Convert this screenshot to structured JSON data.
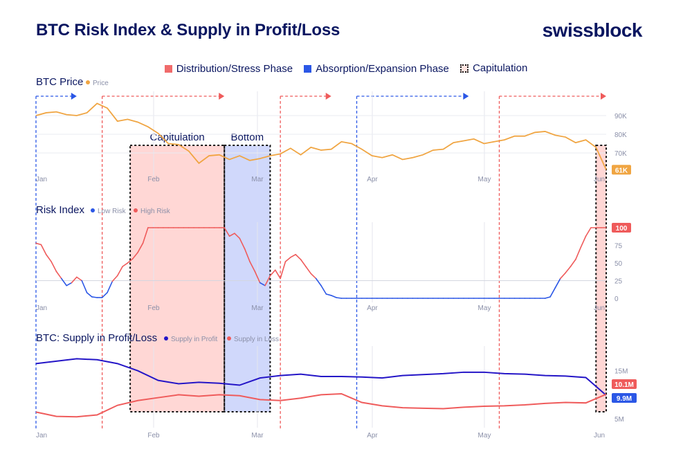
{
  "header": {
    "title": "BTC Risk Index & Supply in Profit/Loss",
    "brand": "swissblock"
  },
  "legend": [
    {
      "label": "Distribution/Stress Phase",
      "kind": "dist"
    },
    {
      "label": "Absorption/Expansion Phase",
      "kind": "abs"
    },
    {
      "label": "Capitulation",
      "kind": "cap"
    }
  ],
  "colors": {
    "price": "#f0a542",
    "low_risk": "#2b57e6",
    "high_risk": "#ef5b5b",
    "profit": "#2415c7",
    "loss": "#ef5b5b",
    "dist_fill": "#ffd3d0",
    "abs_fill": "#cdd6fb",
    "navy": "#0a1660"
  },
  "annotations": {
    "capitulation": "Capitulation",
    "bottom": "Bottom"
  },
  "chart_data": [
    {
      "type": "line",
      "title": "BTC Price",
      "legend_position": "top-left",
      "x_ticks": [
        "Jan",
        "Feb",
        "Mar",
        "Apr",
        "May",
        "Jun"
      ],
      "y_ticks": [
        "90K",
        "80K",
        "70K"
      ],
      "ylim": [
        60000,
        100000
      ],
      "series": [
        {
          "name": "Price",
          "last_label": "61K",
          "x": [
            0,
            4,
            8,
            12,
            16,
            20,
            24,
            28,
            32,
            36,
            40,
            44,
            48,
            52,
            56,
            60,
            64,
            68,
            72,
            76,
            80,
            84,
            88,
            92,
            96,
            100,
            104,
            108,
            112,
            116,
            120,
            124,
            128,
            132,
            136,
            140,
            144,
            148,
            152,
            156,
            160,
            164,
            168,
            172,
            176,
            180,
            184,
            188,
            192,
            196,
            200,
            204,
            208,
            212,
            216,
            220,
            224
          ],
          "values": [
            90000,
            91500,
            92000,
            90500,
            90000,
            91500,
            96500,
            94000,
            87000,
            88000,
            86500,
            84000,
            80500,
            75000,
            74500,
            71000,
            64500,
            68500,
            69000,
            66500,
            68500,
            66000,
            67000,
            68500,
            69500,
            72500,
            69000,
            73000,
            71500,
            72000,
            76000,
            75000,
            72000,
            68500,
            67500,
            69000,
            66500,
            67500,
            69000,
            71500,
            72000,
            75500,
            76500,
            77500,
            75000,
            76000,
            77000,
            79000,
            79000,
            81000,
            81500,
            79500,
            78500,
            75500,
            77000,
            73000,
            61000
          ]
        }
      ],
      "phases": [
        {
          "kind": "abs",
          "start": 0,
          "end": 16
        },
        {
          "kind": "dist",
          "start": 26,
          "end": 74
        },
        {
          "kind": "dist",
          "start": 96,
          "end": 116
        },
        {
          "kind": "abs",
          "start": 126,
          "end": 170
        },
        {
          "kind": "dist",
          "start": 182,
          "end": 224
        }
      ]
    },
    {
      "type": "line",
      "title": "Risk Index",
      "legend_position": "top-left",
      "x_ticks": [
        "Jan",
        "Feb",
        "Mar",
        "Apr",
        "May",
        "Jun"
      ],
      "y_ticks": [
        "100",
        "75",
        "50",
        "25",
        "0"
      ],
      "ylim": [
        0,
        100
      ],
      "last_value_label": "100",
      "series_names": {
        "low": "Low Risk",
        "high": "High Risk"
      },
      "x": [
        0,
        2,
        4,
        6,
        8,
        10,
        12,
        14,
        16,
        18,
        20,
        22,
        24,
        26,
        28,
        30,
        32,
        34,
        36,
        38,
        40,
        42,
        44,
        46,
        48,
        50,
        52,
        54,
        56,
        58,
        60,
        62,
        64,
        66,
        68,
        70,
        72,
        74,
        76,
        78,
        80,
        82,
        84,
        86,
        88,
        90,
        92,
        94,
        96,
        98,
        100,
        102,
        104,
        106,
        108,
        110,
        112,
        114,
        116,
        118,
        120,
        122,
        124,
        126,
        128,
        130,
        132,
        134,
        136,
        138,
        140,
        142,
        144,
        146,
        148,
        150,
        152,
        154,
        156,
        158,
        160,
        162,
        164,
        166,
        168,
        170,
        172,
        174,
        176,
        178,
        180,
        182,
        184,
        186,
        188,
        190,
        192,
        194,
        196,
        198,
        200,
        202,
        204,
        206,
        208,
        210,
        212,
        214,
        216,
        218,
        220,
        222,
        224
      ],
      "values": [
        78,
        76,
        62,
        52,
        38,
        28,
        18,
        22,
        30,
        25,
        8,
        2,
        1,
        1,
        8,
        24,
        32,
        45,
        50,
        56,
        65,
        78,
        100,
        100,
        100,
        100,
        100,
        100,
        100,
        100,
        100,
        100,
        100,
        100,
        100,
        100,
        100,
        100,
        88,
        92,
        85,
        70,
        52,
        38,
        22,
        18,
        32,
        40,
        28,
        52,
        58,
        62,
        55,
        45,
        35,
        28,
        18,
        6,
        4,
        1,
        0,
        0,
        0,
        0,
        0,
        0,
        0,
        0,
        0,
        0,
        0,
        0,
        0,
        0,
        0,
        0,
        0,
        0,
        0,
        0,
        0,
        0,
        0,
        0,
        0,
        0,
        0,
        0,
        0,
        0,
        0,
        0,
        0,
        0,
        0,
        0,
        0,
        0,
        0,
        0,
        0,
        2,
        15,
        28,
        36,
        45,
        55,
        72,
        88,
        100,
        100,
        100,
        100
      ],
      "split": 25
    },
    {
      "type": "line",
      "title": "BTC: Supply in Profit/Loss",
      "legend_position": "top-left",
      "x_ticks": [
        "Jan",
        "Feb",
        "Mar",
        "Apr",
        "May",
        "Jun"
      ],
      "y_ticks": [
        "15M",
        "5M"
      ],
      "ylim": [
        4000000,
        19000000
      ],
      "series": [
        {
          "name": "Supply in Profit",
          "last_label": "9.9M",
          "x": [
            0,
            8,
            16,
            24,
            32,
            40,
            48,
            56,
            64,
            72,
            80,
            88,
            96,
            104,
            112,
            120,
            128,
            136,
            144,
            152,
            160,
            168,
            176,
            184,
            192,
            200,
            208,
            216,
            224
          ],
          "values": [
            16500000,
            17000000,
            17500000,
            17300000,
            16500000,
            15000000,
            13000000,
            12300000,
            12600000,
            12400000,
            12000000,
            13500000,
            14000000,
            14300000,
            13800000,
            13800000,
            13700000,
            13500000,
            14000000,
            14200000,
            14400000,
            14700000,
            14700000,
            14400000,
            14300000,
            14000000,
            13900000,
            13600000,
            9900000
          ]
        },
        {
          "name": "Supply in Loss",
          "last_label": "10.1M",
          "x": [
            0,
            8,
            16,
            24,
            32,
            40,
            48,
            56,
            64,
            72,
            80,
            88,
            96,
            104,
            112,
            120,
            128,
            136,
            144,
            152,
            160,
            168,
            176,
            184,
            192,
            200,
            208,
            216,
            224
          ],
          "values": [
            6400000,
            5500000,
            5400000,
            5800000,
            7800000,
            8800000,
            9400000,
            10000000,
            9700000,
            10000000,
            9800000,
            9000000,
            8800000,
            9300000,
            10000000,
            10200000,
            8400000,
            7700000,
            7300000,
            7200000,
            7100000,
            7400000,
            7600000,
            7700000,
            7900000,
            8200000,
            8400000,
            8300000,
            10100000
          ]
        }
      ]
    }
  ]
}
